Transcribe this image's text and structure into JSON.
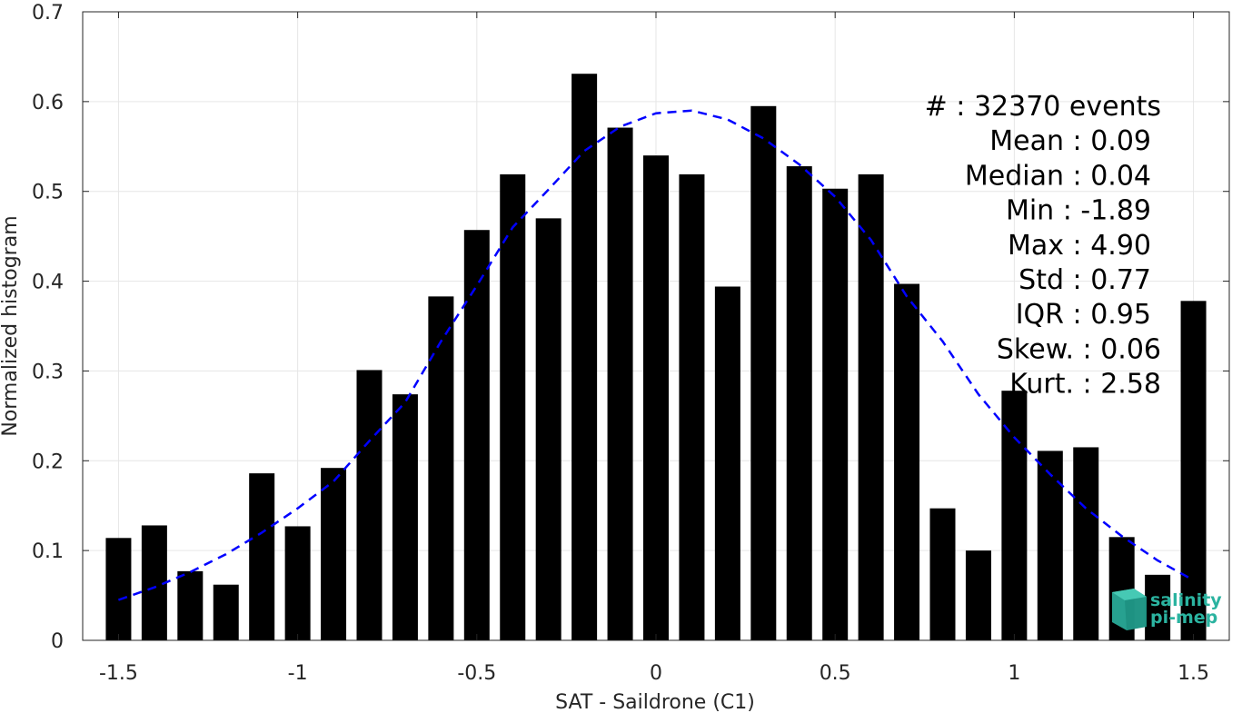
{
  "chart_data": {
    "type": "bar",
    "xlabel": "SAT - Saildrone (C1)",
    "ylabel": "Normalized histogram",
    "xlim": [
      -1.6,
      1.6
    ],
    "ylim": [
      0,
      0.7
    ],
    "xticks": [
      -1.5,
      -1,
      -0.5,
      0,
      0.5,
      1,
      1.5
    ],
    "xtick_labels": [
      "-1.5",
      "-1",
      "-0.5",
      "0",
      "0.5",
      "1",
      "1.5"
    ],
    "yticks": [
      0,
      0.1,
      0.2,
      0.3,
      0.4,
      0.5,
      0.6,
      0.7
    ],
    "ytick_labels": [
      "0",
      "0.1",
      "0.2",
      "0.3",
      "0.4",
      "0.5",
      "0.6",
      "0.7"
    ],
    "grid": true,
    "bar_color": "#000000",
    "fit_color": "#0000ff",
    "bins": [
      -1.5,
      -1.4,
      -1.3,
      -1.2,
      -1.1,
      -1.0,
      -0.9,
      -0.8,
      -0.7,
      -0.6,
      -0.5,
      -0.4,
      -0.3,
      -0.2,
      -0.1,
      0.0,
      0.1,
      0.2,
      0.3,
      0.4,
      0.5,
      0.6,
      0.7,
      0.8,
      0.9,
      1.0,
      1.1,
      1.2,
      1.3,
      1.4,
      1.5
    ],
    "values": [
      0.114,
      0.128,
      0.077,
      0.062,
      0.186,
      0.127,
      0.192,
      0.301,
      0.274,
      0.383,
      0.457,
      0.519,
      0.47,
      0.631,
      0.571,
      0.54,
      0.519,
      0.394,
      0.595,
      0.528,
      0.503,
      0.519,
      0.397,
      0.147,
      0.1,
      0.278,
      0.211,
      0.215,
      0.115,
      0.073,
      0.378
    ],
    "fit": {
      "style": "dashed",
      "x": [
        -1.5,
        -1.4,
        -1.3,
        -1.2,
        -1.1,
        -1.0,
        -0.9,
        -0.8,
        -0.7,
        -0.6,
        -0.5,
        -0.4,
        -0.3,
        -0.2,
        -0.1,
        0.0,
        0.1,
        0.2,
        0.3,
        0.4,
        0.5,
        0.6,
        0.7,
        0.8,
        0.9,
        1.0,
        1.1,
        1.2,
        1.3,
        1.4,
        1.5
      ],
      "y": [
        0.045,
        0.059,
        0.076,
        0.096,
        0.12,
        0.147,
        0.177,
        0.222,
        0.265,
        0.333,
        0.395,
        0.46,
        0.502,
        0.545,
        0.572,
        0.587,
        0.59,
        0.58,
        0.559,
        0.53,
        0.494,
        0.446,
        0.383,
        0.333,
        0.274,
        0.226,
        0.185,
        0.147,
        0.116,
        0.089,
        0.067
      ]
    },
    "stats_box": [
      "#  : 32370 events",
      "Mean : 0.09",
      "Median : 0.04",
      "Min : -1.89",
      "Max : 4.90",
      "Std : 0.77",
      "IQR : 0.95",
      "Skew. : 0.06",
      "Kurt. : 2.58"
    ]
  },
  "logo": {
    "line1": "salinity",
    "line2": "pi-mep",
    "color": "#2bb3a0"
  }
}
